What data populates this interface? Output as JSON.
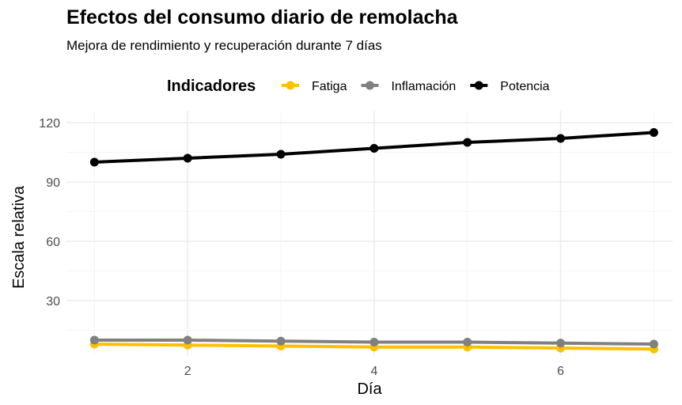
{
  "chart_data": {
    "type": "line",
    "title": "Efectos del consumo diario de remolacha",
    "subtitle": "Mejora de rendimiento y recuperación durante 7 días",
    "xlabel": "Día",
    "ylabel": "Escala relativa",
    "legend_title": "Indicadores",
    "legend_position": "top",
    "grid": true,
    "x": [
      1,
      2,
      3,
      4,
      5,
      6,
      7
    ],
    "x_ticks": [
      2,
      4,
      6
    ],
    "y_ticks": [
      30,
      60,
      90,
      120
    ],
    "xlim": [
      0.7,
      7.2
    ],
    "ylim": [
      2,
      126
    ],
    "series": [
      {
        "name": "Fatiga",
        "color": "#FFC000",
        "values": [
          8,
          7.5,
          7,
          6.5,
          6.5,
          6,
          5.5
        ]
      },
      {
        "name": "Inflamación",
        "color": "#808080",
        "values": [
          10,
          10,
          9.5,
          9,
          9,
          8.5,
          8
        ]
      },
      {
        "name": "Potencia",
        "color": "#000000",
        "values": [
          100,
          102,
          104,
          107,
          110,
          112,
          115
        ]
      }
    ]
  }
}
